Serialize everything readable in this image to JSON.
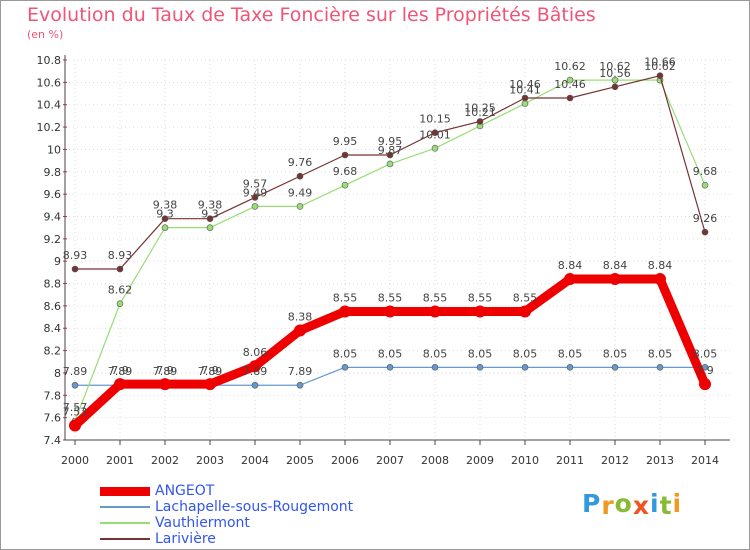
{
  "chart_data": {
    "type": "line",
    "title": "Evolution du Taux de Taxe Foncière sur les Propriétés Bâties",
    "ylabel": "(en %)",
    "xlabel": "",
    "categories": [
      "2000",
      "2001",
      "2002",
      "2003",
      "2004",
      "2005",
      "2006",
      "2007",
      "2008",
      "2009",
      "2010",
      "2011",
      "2012",
      "2013",
      "2014"
    ],
    "ylim": [
      7.4,
      10.8
    ],
    "yticks": [
      "7.4",
      "7.6",
      "7.8",
      "8",
      "8.2",
      "8.4",
      "8.6",
      "8.8",
      "9",
      "9.2",
      "9.4",
      "9.6",
      "9.8",
      "10",
      "10.2",
      "10.4",
      "10.6",
      "10.8"
    ],
    "series": [
      {
        "name": "Lachapelle-sous-Rougemont",
        "color": "#6699cc",
        "values": [
          7.89,
          7.89,
          7.89,
          7.89,
          7.89,
          7.89,
          8.05,
          8.05,
          8.05,
          8.05,
          8.05,
          8.05,
          8.05,
          8.05,
          8.05
        ],
        "labels": [
          "7.89",
          "7.89",
          "7.89",
          "7.89",
          "7.89",
          "7.89",
          "8.05",
          "8.05",
          "8.05",
          "8.05",
          "8.05",
          "8.05",
          "8.05",
          "8.05",
          "8.05"
        ]
      },
      {
        "name": "Vauthiermont",
        "color": "#99dd77",
        "values": [
          7.57,
          8.62,
          9.3,
          9.3,
          9.49,
          9.49,
          9.68,
          9.87,
          10.01,
          10.21,
          10.41,
          10.62,
          10.62,
          10.62,
          9.68
        ],
        "labels": [
          "7.57",
          "8.62",
          "9.3",
          "9.3",
          "9.49",
          "9.49",
          "9.68",
          "9.87",
          "10.01",
          "10.21",
          "10.41",
          "10.62",
          "10.62",
          "10.62",
          "9.68"
        ]
      },
      {
        "name": "Larivière",
        "color": "#773333",
        "values": [
          8.93,
          8.93,
          9.38,
          9.38,
          9.57,
          9.76,
          9.95,
          9.95,
          10.15,
          10.25,
          10.46,
          10.46,
          10.56,
          10.66,
          9.26
        ],
        "labels": [
          "8.93",
          "8.93",
          "9.38",
          "9.38",
          "9.57",
          "9.76",
          "9.95",
          "9.95",
          "10.15",
          "10.25",
          "10.46",
          "10.46",
          "10.56",
          "10.66",
          "9.26"
        ]
      },
      {
        "name": "ANGEOT",
        "color": "#ee0000",
        "values": [
          7.53,
          7.9,
          7.9,
          7.9,
          8.06,
          8.38,
          8.55,
          8.55,
          8.55,
          8.55,
          8.55,
          8.84,
          8.84,
          8.84,
          7.9
        ],
        "labels": [
          "7.53",
          "7.9",
          "7.9",
          "7.9",
          "8.06",
          "8.38",
          "8.55",
          "8.55",
          "8.55",
          "8.55",
          "8.55",
          "8.84",
          "8.84",
          "8.84",
          "7.9"
        ]
      }
    ],
    "legend": [
      "ANGEOT",
      "Lachapelle-sous-Rougemont",
      "Vauthiermont",
      "Larivière"
    ],
    "legend_position": "bottom-left"
  },
  "logo": {
    "letters": [
      "P",
      "r",
      "o",
      "x",
      "i",
      "t",
      "i"
    ],
    "colors": [
      "#3399dd",
      "#ee9922",
      "#88bb33",
      "#ee5522",
      "#3399dd",
      "#88bb33",
      "#ee9922"
    ]
  }
}
